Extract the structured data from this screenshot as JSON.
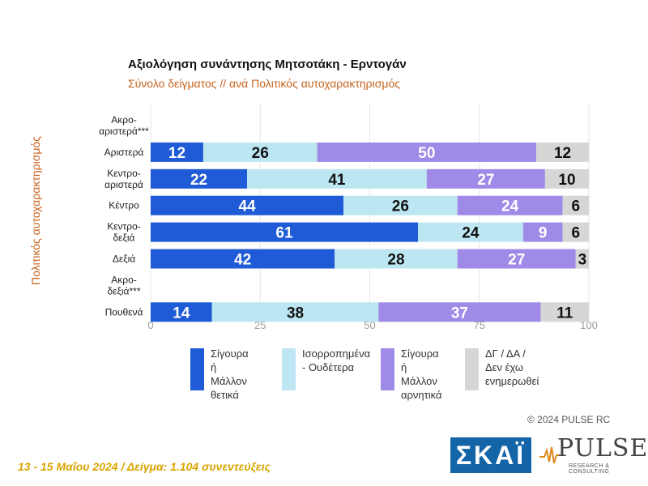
{
  "chart_data": {
    "type": "bar",
    "orientation": "horizontal",
    "stacked": true,
    "title": "Αξιολόγηση συνάντησης Μητσοτάκη - Ερντογάν",
    "subtitle": "Σύνολο δείγματος // ανά Πολιτικός αυτοχαρακτηρισμός",
    "ylabel": "Πολιτικός αυτοχαρακτηρισμός",
    "xlabel": "",
    "xlim": [
      0,
      100
    ],
    "xticks": [
      "0",
      "25",
      "50",
      "75",
      "100"
    ],
    "categories": [
      "Ακρο-\nαριστερά***",
      "Αριστερά",
      "Κεντρο-\nαριστερά",
      "Κέντρο",
      "Κεντρο-\nδεξιά",
      "Δεξιά",
      "Ακρο-\nδεξιά***",
      "Πουθενά"
    ],
    "legend_position": "bottom",
    "series": [
      {
        "name": "Σίγουρα ή\nΜάλλον\nθετικά",
        "color": "#1f5bd6",
        "text_color": "#ffffff",
        "values": [
          null,
          12,
          22,
          44,
          61,
          42,
          null,
          14
        ]
      },
      {
        "name": "Ισορροπημένα\n- Ουδέτερα",
        "color": "#bde6f3",
        "text_color": "#111111",
        "values": [
          null,
          26,
          41,
          26,
          24,
          28,
          null,
          38
        ]
      },
      {
        "name": "Σίγουρα ή\nΜάλλον\nαρνητικά",
        "color": "#a08ae8",
        "text_color": "#ffffff",
        "values": [
          null,
          50,
          27,
          24,
          9,
          27,
          null,
          37
        ]
      },
      {
        "name": "ΔΓ / ΔΑ /\nΔεν έχω\nενημερωθεί",
        "color": "#d6d6d6",
        "text_color": "#111111",
        "values": [
          null,
          12,
          10,
          6,
          6,
          3,
          null,
          11
        ]
      }
    ]
  },
  "copyright": "© 2024 PULSE RC",
  "footer": "13 - 15 Μαΐου 2024 / Δείγμα: 1.104 συνεντεύξεις",
  "logos": {
    "skai": "ΣΚΑΪ",
    "pulse": "PULSE",
    "pulse_sub": "RESEARCH & CONSULTING"
  }
}
